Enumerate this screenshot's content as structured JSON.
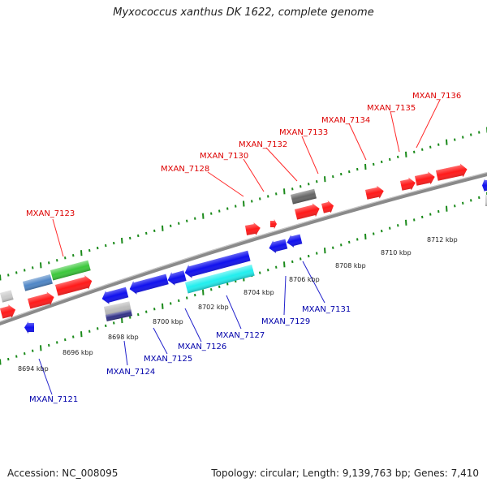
{
  "title": "Myxococcus xanthus DK 1622, complete genome",
  "footer": {
    "accession": "Accession: NC_008095",
    "topology": "Topology: circular; Length: 9,139,763 bp; Genes: 7,410"
  },
  "colors": {
    "forward_gene": "#ff0000",
    "reverse_gene": "#0000ee",
    "forward_label": "#dd0000",
    "reverse_label": "#0000aa",
    "backbone": "#8a8a8a",
    "tick": "#1a8a1a"
  },
  "scale_labels": [
    "8694 kbp",
    "8696 kbp",
    "8698 kbp",
    "8700 kbp",
    "8702 kbp",
    "8704 kbp",
    "8706 kbp",
    "8708 kbp",
    "8710 kbp",
    "8712 kbp"
  ],
  "forward_labels": [
    "MXAN_7123",
    "MXAN_7128",
    "MXAN_7130",
    "MXAN_7132",
    "MXAN_7133",
    "MXAN_7134",
    "MXAN_7135",
    "MXAN_7136"
  ],
  "reverse_labels": [
    "MXAN_7121",
    "MXAN_7124",
    "MXAN_7125",
    "MXAN_7126",
    "MXAN_7127",
    "MXAN_7129",
    "MXAN_7131"
  ]
}
